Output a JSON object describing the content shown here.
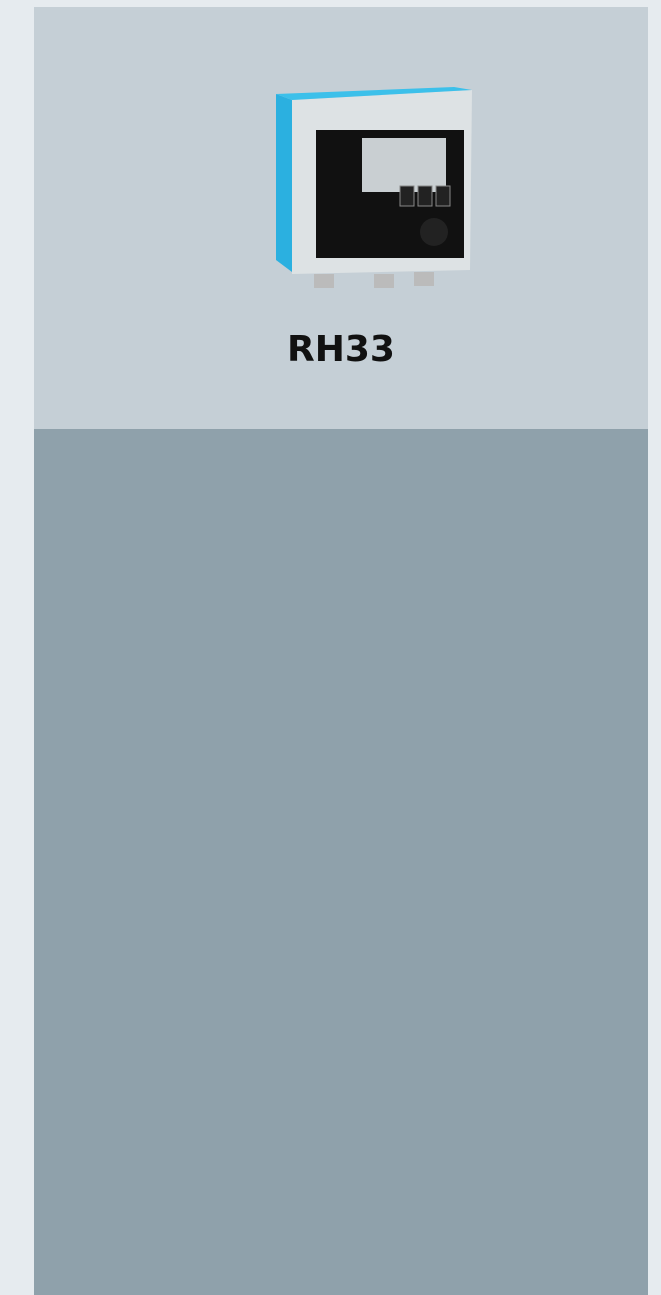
{
  "product": {
    "name": "RH33"
  }
}
